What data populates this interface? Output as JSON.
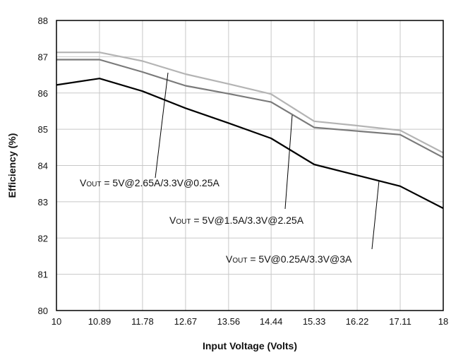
{
  "chart_data": {
    "type": "line",
    "xlabel": "Input Voltage (Volts)",
    "ylabel": "Efficiency (%)",
    "xlim": [
      10,
      18
    ],
    "ylim": [
      80,
      88
    ],
    "x_ticks": [
      "10",
      "10.89",
      "11.78",
      "12.67",
      "13.56",
      "14.44",
      "15.33",
      "16.22",
      "17.11",
      "18"
    ],
    "y_ticks": [
      "80",
      "81",
      "82",
      "83",
      "84",
      "85",
      "86",
      "87",
      "88"
    ],
    "grid": true,
    "colors": {
      "black": "#000000",
      "gray": "#7a7a7a",
      "light": "#b4b4b4"
    },
    "series": [
      {
        "name": "VOUT = 5V@2.65A/3.3V@0.25A",
        "label_parts": [
          "V",
          "OUT",
          " = 5V@2.65A/3.3V@0.25A"
        ],
        "color": "#b4b4b4",
        "x": [
          10,
          10.89,
          11.78,
          12.67,
          13.56,
          14.44,
          15.33,
          16.22,
          17.11,
          18
        ],
        "y": [
          87.12,
          87.12,
          86.88,
          86.52,
          86.25,
          85.97,
          85.22,
          85.1,
          84.97,
          84.35
        ]
      },
      {
        "name": "VOUT = 5V@1.5A/3.3V@2.25A",
        "label_parts": [
          "V",
          "OUT",
          " = 5V@1.5A/3.3V@2.25A"
        ],
        "color": "#7a7a7a",
        "x": [
          10,
          10.89,
          11.78,
          12.67,
          13.56,
          14.44,
          15.33,
          16.22,
          17.11,
          18
        ],
        "y": [
          86.92,
          86.92,
          86.58,
          86.2,
          85.98,
          85.75,
          85.05,
          84.95,
          84.85,
          84.22
        ]
      },
      {
        "name": "VOUT = 5V@0.25A/3.3V@3A",
        "label_parts": [
          "V",
          "OUT",
          " = 5V@0.25A/3.3V@3A"
        ],
        "color": "#000000",
        "x": [
          10,
          10.89,
          11.78,
          12.67,
          13.56,
          14.44,
          15.33,
          16.22,
          17.11,
          18
        ],
        "y": [
          86.22,
          86.4,
          86.05,
          85.58,
          85.17,
          84.75,
          84.03,
          83.73,
          83.43,
          82.82
        ]
      }
    ]
  }
}
